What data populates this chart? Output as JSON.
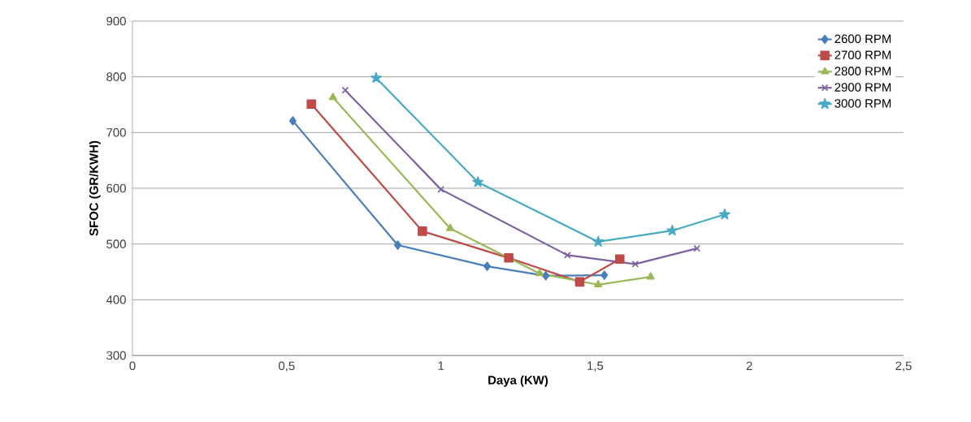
{
  "chart_data": {
    "type": "line",
    "xlabel": "Daya (KW)",
    "ylabel": "SFOC (GR/KWH)",
    "xlim": [
      0,
      2.5
    ],
    "ylim": [
      300,
      900
    ],
    "xticks": [
      0,
      {
        "value": 0.5,
        "label": "0,5"
      },
      1,
      {
        "value": 1.5,
        "label": "1,5"
      },
      2,
      {
        "value": 2.5,
        "label": "2,5"
      }
    ],
    "yticks": [
      300,
      400,
      500,
      600,
      700,
      800,
      900
    ],
    "grid": "y",
    "legend": "top right",
    "series": [
      {
        "name": "2600 RPM",
        "color": "#4a7ebb",
        "marker": "diamond",
        "x": [
          0.52,
          0.86,
          1.15,
          1.34,
          1.53
        ],
        "values": [
          721,
          498,
          460,
          443,
          444
        ]
      },
      {
        "name": "2700 RPM",
        "color": "#be4b48",
        "marker": "square",
        "x": [
          0.58,
          0.94,
          1.22,
          1.45,
          1.58
        ],
        "values": [
          751,
          523,
          475,
          432,
          473
        ]
      },
      {
        "name": "2800 RPM",
        "color": "#98b954",
        "marker": "triangle",
        "x": [
          0.65,
          1.03,
          1.32,
          1.51,
          1.68
        ],
        "values": [
          763,
          528,
          447,
          427,
          441
        ]
      },
      {
        "name": "2900 RPM",
        "color": "#7d60a0",
        "marker": "cross",
        "x": [
          0.69,
          1.0,
          1.41,
          1.63,
          1.83
        ],
        "values": [
          776,
          598,
          480,
          464,
          492
        ]
      },
      {
        "name": "3000 RPM",
        "color": "#46aac5",
        "marker": "star",
        "x": [
          0.79,
          1.12,
          1.51,
          1.75,
          1.92
        ],
        "values": [
          798,
          611,
          504,
          524,
          553
        ]
      }
    ]
  }
}
